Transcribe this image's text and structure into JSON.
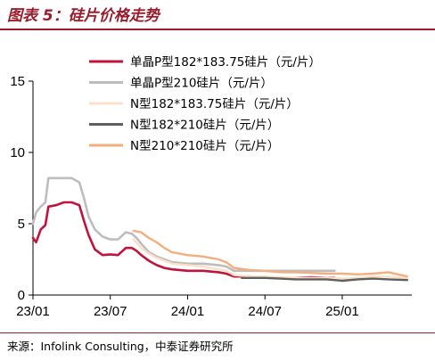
{
  "figure": {
    "title": "图表 5：硅片价格走势",
    "source": "来源：Infolink Consulting，中泰证券研究所"
  },
  "chart_data": {
    "type": "line",
    "title": "图表 5：硅片价格走势",
    "xlabel": "",
    "ylabel": "",
    "ylim": [
      0,
      15
    ],
    "yticks": [
      "0",
      "5",
      "10",
      "15"
    ],
    "xticks": [
      "23/01",
      "23/07",
      "24/01",
      "24/07",
      "25/01"
    ],
    "xtick_dates": [
      2023.0,
      2023.5,
      2024.0,
      2024.5,
      2025.0
    ],
    "xlim": [
      2023.0,
      2025.45
    ],
    "grid": false,
    "legend_position": "top-right",
    "series": [
      {
        "name": "单晶P型182*183.75硅片（元/片）",
        "color": "#c0143c",
        "width": 2.6,
        "x": [
          2023.0,
          2023.02,
          2023.05,
          2023.08,
          2023.1,
          2023.15,
          2023.2,
          2023.25,
          2023.3,
          2023.33,
          2023.36,
          2023.4,
          2023.45,
          2023.5,
          2023.55,
          2023.58,
          2023.6,
          2023.64,
          2023.67,
          2023.7,
          2023.75,
          2023.8,
          2023.85,
          2023.9,
          2024.0,
          2024.1,
          2024.2,
          2024.25,
          2024.3,
          2024.4,
          2024.5,
          2024.6,
          2024.7,
          2024.8,
          2024.9,
          2024.95
        ],
        "y": [
          4.0,
          3.7,
          4.6,
          4.9,
          6.2,
          6.3,
          6.5,
          6.5,
          6.3,
          5.2,
          4.2,
          3.2,
          2.8,
          2.85,
          2.8,
          3.1,
          3.3,
          3.3,
          3.1,
          2.8,
          2.4,
          2.1,
          1.9,
          1.8,
          1.7,
          1.7,
          1.6,
          1.5,
          1.3,
          1.3,
          1.25,
          1.2,
          1.2,
          1.25,
          1.2,
          1.2
        ]
      },
      {
        "name": "单晶P型210硅片（元/片）",
        "color": "#bdbdbd",
        "width": 2.6,
        "x": [
          2023.0,
          2023.02,
          2023.05,
          2023.08,
          2023.1,
          2023.15,
          2023.2,
          2023.25,
          2023.3,
          2023.33,
          2023.36,
          2023.4,
          2023.45,
          2023.5,
          2023.55,
          2023.58,
          2023.6,
          2023.64,
          2023.67,
          2023.7,
          2023.75,
          2023.8,
          2023.85,
          2023.9,
          2024.0,
          2024.1,
          2024.2,
          2024.25,
          2024.3,
          2024.4,
          2024.5,
          2024.6,
          2024.7,
          2024.8,
          2024.9,
          2024.95
        ],
        "y": [
          5.0,
          5.8,
          6.2,
          6.5,
          8.2,
          8.2,
          8.2,
          8.2,
          7.9,
          6.8,
          5.5,
          4.6,
          4.1,
          3.9,
          3.9,
          4.2,
          4.4,
          4.3,
          4.0,
          3.6,
          3.0,
          2.7,
          2.5,
          2.3,
          2.2,
          2.2,
          2.1,
          2.0,
          1.7,
          1.7,
          1.7,
          1.7,
          1.7,
          1.7,
          1.7,
          1.7
        ]
      },
      {
        "name": "N型182*183.75硅片（元/片）",
        "color": "#fbe0c8",
        "width": 2.4,
        "x": [
          2023.65,
          2023.7,
          2023.75,
          2023.8,
          2023.85,
          2023.9,
          2024.0,
          2024.1,
          2024.2,
          2024.25,
          2024.3,
          2024.4,
          2024.5,
          2024.6,
          2024.7,
          2024.8,
          2024.9,
          2025.0,
          2025.1,
          2025.2,
          2025.3,
          2025.42
        ],
        "y": [
          3.9,
          3.3,
          2.9,
          2.6,
          2.4,
          2.2,
          2.1,
          2.0,
          1.8,
          1.7,
          1.4,
          1.3,
          1.3,
          1.25,
          1.2,
          1.2,
          1.2,
          1.15,
          1.2,
          1.3,
          1.3,
          1.15
        ]
      },
      {
        "name": "N型182*210硅片（元/片）",
        "color": "#5f5f5f",
        "width": 2.4,
        "x": [
          2024.35,
          2024.4,
          2024.5,
          2024.6,
          2024.7,
          2024.8,
          2024.9,
          2025.0,
          2025.1,
          2025.2,
          2025.3,
          2025.42
        ],
        "y": [
          1.2,
          1.2,
          1.2,
          1.15,
          1.1,
          1.1,
          1.1,
          1.0,
          1.1,
          1.15,
          1.1,
          1.05
        ]
      },
      {
        "name": "N型210*210硅片（元/片）",
        "color": "#f2ae7c",
        "width": 2.4,
        "x": [
          2023.65,
          2023.7,
          2023.75,
          2023.8,
          2023.85,
          2023.9,
          2024.0,
          2024.1,
          2024.2,
          2024.25,
          2024.3,
          2024.4,
          2024.5,
          2024.6,
          2024.7,
          2024.8,
          2024.9,
          2025.0,
          2025.1,
          2025.2,
          2025.3,
          2025.42
        ],
        "y": [
          4.5,
          4.4,
          4.0,
          3.7,
          3.3,
          3.0,
          2.8,
          2.7,
          2.5,
          2.3,
          1.9,
          1.75,
          1.7,
          1.6,
          1.6,
          1.55,
          1.5,
          1.5,
          1.45,
          1.5,
          1.6,
          1.3
        ]
      }
    ]
  }
}
